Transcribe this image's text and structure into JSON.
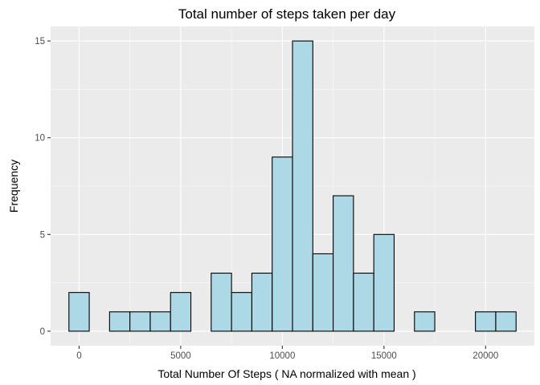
{
  "chart_data": {
    "type": "bar",
    "subtype": "histogram",
    "title": "Total number of steps taken per day",
    "xlabel": "Total Number Of Steps ( NA normalized with mean )",
    "ylabel": "Frequency",
    "bin_width": 1000,
    "bins": [
      {
        "x_start": -500,
        "x_end": 500,
        "count": 2
      },
      {
        "x_start": 500,
        "x_end": 1500,
        "count": 0
      },
      {
        "x_start": 1500,
        "x_end": 2500,
        "count": 1
      },
      {
        "x_start": 2500,
        "x_end": 3500,
        "count": 1
      },
      {
        "x_start": 3500,
        "x_end": 4500,
        "count": 1
      },
      {
        "x_start": 4500,
        "x_end": 5500,
        "count": 2
      },
      {
        "x_start": 5500,
        "x_end": 6500,
        "count": 0
      },
      {
        "x_start": 6500,
        "x_end": 7500,
        "count": 3
      },
      {
        "x_start": 7500,
        "x_end": 8500,
        "count": 2
      },
      {
        "x_start": 8500,
        "x_end": 9500,
        "count": 3
      },
      {
        "x_start": 9500,
        "x_end": 10500,
        "count": 9
      },
      {
        "x_start": 10500,
        "x_end": 11500,
        "count": 15
      },
      {
        "x_start": 11500,
        "x_end": 12500,
        "count": 4
      },
      {
        "x_start": 12500,
        "x_end": 13500,
        "count": 7
      },
      {
        "x_start": 13500,
        "x_end": 14500,
        "count": 3
      },
      {
        "x_start": 14500,
        "x_end": 15500,
        "count": 5
      },
      {
        "x_start": 15500,
        "x_end": 16500,
        "count": 0
      },
      {
        "x_start": 16500,
        "x_end": 17500,
        "count": 1
      },
      {
        "x_start": 17500,
        "x_end": 18500,
        "count": 0
      },
      {
        "x_start": 18500,
        "x_end": 19500,
        "count": 0
      },
      {
        "x_start": 19500,
        "x_end": 20500,
        "count": 1
      },
      {
        "x_start": 20500,
        "x_end": 21500,
        "count": 1
      }
    ],
    "xlim": [
      -1400,
      22400
    ],
    "ylim": [
      -0.75,
      15.75
    ],
    "x_ticks": [
      0,
      5000,
      10000,
      15000,
      20000
    ],
    "x_tick_labels": [
      "0",
      "5000",
      "10000",
      "15000",
      "20000"
    ],
    "y_ticks": [
      0,
      5,
      10,
      15
    ],
    "y_tick_labels": [
      "0",
      "5",
      "10",
      "15"
    ],
    "grid": true,
    "legend": "none",
    "colors": {
      "panel_background": "#ebebeb",
      "grid_major": "#ffffff",
      "bar_fill": "#add8e6",
      "bar_outline": "#000000",
      "tick_mark": "#333333"
    }
  }
}
